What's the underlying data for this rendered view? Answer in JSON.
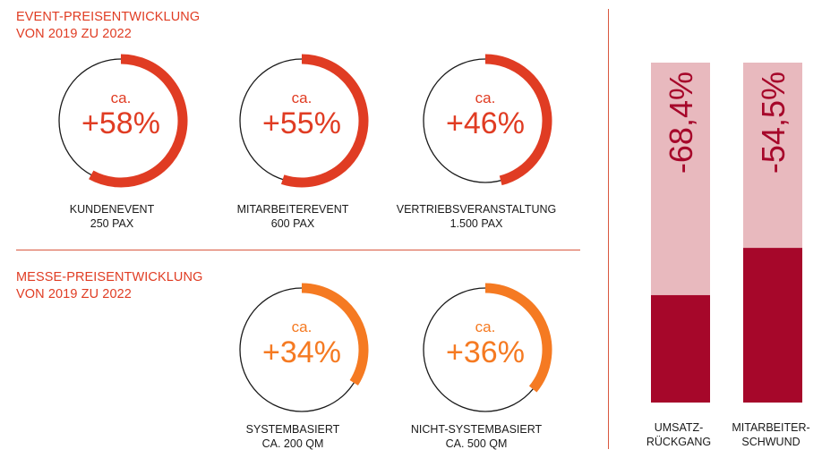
{
  "event_section": {
    "line1": "EVENT-PREISENTWICKLUNG",
    "line2": "VON 2019 ZU 2022"
  },
  "fair_section": {
    "line1": "MESSE-PREISENTWICKLUNG",
    "line2": "VON 2019 ZU 2022"
  },
  "colors": {
    "event_accent": "#e03c23",
    "fair_accent": "#f57a22",
    "bar_light": "#e8b9be",
    "bar_dark": "#a6072a",
    "ring_outline": "#1a1a1a"
  },
  "chart_data": [
    {
      "type": "pie",
      "group": "event",
      "items": [
        {
          "prefix": "ca.",
          "value_label": "+58%",
          "value": 58,
          "caption1": "KUNDENEVENT",
          "caption2": "250 PAX"
        },
        {
          "prefix": "ca.",
          "value_label": "+55%",
          "value": 55,
          "caption1": "MITARBEITEREVENT",
          "caption2": "600 PAX"
        },
        {
          "prefix": "ca.",
          "value_label": "+46%",
          "value": 46,
          "caption1": "VERTRIEBSVERANSTALTUNG",
          "caption2": "1.500 PAX"
        }
      ]
    },
    {
      "type": "pie",
      "group": "fair",
      "items": [
        {
          "prefix": "ca.",
          "value_label": "+34%",
          "value": 34,
          "caption1": "SYSTEMBASIERT",
          "caption2": "CA. 200 QM"
        },
        {
          "prefix": "ca.",
          "value_label": "+36%",
          "value": 36,
          "caption1": "NICHT-SYSTEMBASIERT",
          "caption2": "CA. 500 QM"
        }
      ]
    },
    {
      "type": "bar",
      "categories": [
        "UMSATZ-RÜCKGANG",
        "MITARBEITER-SCHWUND"
      ],
      "label_lines": [
        [
          "UMSATZ-",
          "RÜCKGANG"
        ],
        [
          "MITARBEITER-",
          "SCHWUND"
        ]
      ],
      "values": [
        -68.4,
        -54.5
      ],
      "value_labels": [
        "-68,4%",
        "-54,5%"
      ],
      "ylim": [
        0,
        100
      ]
    }
  ]
}
